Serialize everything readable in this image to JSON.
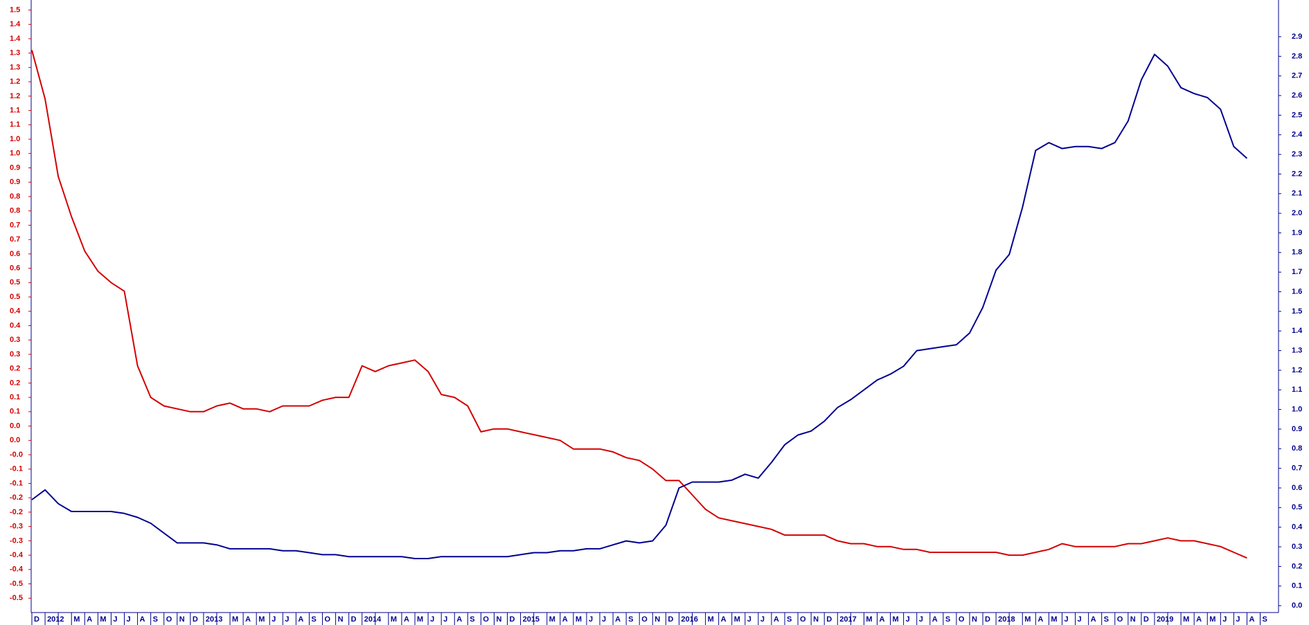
{
  "chart_data": {
    "type": "line",
    "categories": [
      "D",
      "2012",
      null,
      "M",
      "A",
      "M",
      "J",
      "J",
      "A",
      "S",
      "O",
      "N",
      "D",
      "2013",
      null,
      "M",
      "A",
      "M",
      "J",
      "J",
      "A",
      "S",
      "O",
      "N",
      "D",
      "2014",
      null,
      "M",
      "A",
      "M",
      "J",
      "J",
      "A",
      "S",
      "O",
      "N",
      "D",
      "2015",
      null,
      "M",
      "A",
      "M",
      "J",
      "J",
      "A",
      "S",
      "O",
      "N",
      "D",
      "2016",
      null,
      "M",
      "A",
      "M",
      "J",
      "J",
      "A",
      "S",
      "O",
      "N",
      "D",
      "2017",
      null,
      "M",
      "A",
      "M",
      "J",
      "J",
      "A",
      "S",
      "O",
      "N",
      "D",
      "2018",
      null,
      "M",
      "A",
      "M",
      "J",
      "J",
      "A",
      "S",
      "O",
      "N",
      "D",
      "2019",
      null,
      "M",
      "A",
      "M",
      "J",
      "J",
      "A",
      "S"
    ],
    "series": [
      {
        "color": "#d40000",
        "axis": "y",
        "values": [
          1.36,
          1.19,
          0.92,
          0.78,
          0.66,
          0.59,
          0.55,
          0.52,
          0.26,
          0.15,
          0.12,
          0.11,
          0.1,
          0.1,
          0.12,
          0.13,
          0.11,
          0.11,
          0.1,
          0.12,
          0.12,
          0.12,
          0.14,
          0.15,
          0.15,
          0.26,
          0.24,
          0.26,
          0.27,
          0.28,
          0.24,
          0.16,
          0.15,
          0.12,
          0.03,
          0.04,
          0.04,
          0.03,
          0.02,
          0.01,
          0.0,
          -0.03,
          -0.03,
          -0.03,
          -0.04,
          -0.06,
          -0.07,
          -0.1,
          -0.14,
          -0.14,
          -0.19,
          -0.24,
          -0.27,
          -0.28,
          -0.29,
          -0.3,
          -0.31,
          -0.33,
          -0.33,
          -0.33,
          -0.33,
          -0.35,
          -0.36,
          -0.36,
          -0.37,
          -0.37,
          -0.38,
          -0.38,
          -0.39,
          -0.39,
          -0.39,
          -0.39,
          -0.39,
          -0.39,
          -0.4,
          -0.4,
          -0.39,
          -0.38,
          -0.36,
          -0.37,
          -0.37,
          -0.37,
          -0.37,
          -0.36,
          -0.36,
          -0.35,
          -0.34,
          -0.35,
          -0.35,
          -0.36,
          -0.37,
          -0.39,
          -0.41,
          null
        ]
      },
      {
        "color": "#000090",
        "axis": "y2",
        "values": [
          0.54,
          0.59,
          0.52,
          0.48,
          0.48,
          0.48,
          0.48,
          0.47,
          0.45,
          0.42,
          0.37,
          0.32,
          0.32,
          0.32,
          0.31,
          0.29,
          0.29,
          0.29,
          0.29,
          0.28,
          0.28,
          0.27,
          0.26,
          0.26,
          0.25,
          0.25,
          0.25,
          0.25,
          0.25,
          0.24,
          0.24,
          0.25,
          0.25,
          0.25,
          0.25,
          0.25,
          0.25,
          0.26,
          0.27,
          0.27,
          0.28,
          0.28,
          0.29,
          0.29,
          0.31,
          0.33,
          0.32,
          0.33,
          0.41,
          0.6,
          0.63,
          0.63,
          0.63,
          0.64,
          0.67,
          0.65,
          0.73,
          0.82,
          0.87,
          0.89,
          0.94,
          1.01,
          1.05,
          1.1,
          1.15,
          1.18,
          1.22,
          1.3,
          1.31,
          1.32,
          1.33,
          1.39,
          1.52,
          1.71,
          1.79,
          2.03,
          2.32,
          2.36,
          2.33,
          2.34,
          2.34,
          2.33,
          2.36,
          2.47,
          2.68,
          2.81,
          2.75,
          2.64,
          2.61,
          2.59,
          2.53,
          2.34,
          2.28,
          null
        ]
      }
    ],
    "ylim": [
      -0.6,
      1.535
    ],
    "yticks": [
      1.5,
      {
        "value": 1.45,
        "label": "1.4"
      },
      1.4,
      {
        "value": 1.35,
        "label": "1.3"
      },
      1.3,
      {
        "value": 1.25,
        "label": "1.2"
      },
      1.2,
      {
        "value": 1.15,
        "label": "1.1"
      },
      1.1,
      {
        "value": 1.05,
        "label": "1.0"
      },
      {
        "value": 1.0,
        "label": "1.0"
      },
      {
        "value": 0.95,
        "label": "0.9"
      },
      0.9,
      {
        "value": 0.85,
        "label": "0.8"
      },
      0.8,
      {
        "value": 0.75,
        "label": "0.7"
      },
      0.7,
      {
        "value": 0.65,
        "label": "0.6"
      },
      0.6,
      {
        "value": 0.55,
        "label": "0.5"
      },
      0.5,
      {
        "value": 0.45,
        "label": "0.4"
      },
      0.4,
      {
        "value": 0.35,
        "label": "0.3"
      },
      0.3,
      {
        "value": 0.25,
        "label": "0.2"
      },
      0.2,
      {
        "value": 0.15,
        "label": "0.1"
      },
      0.1,
      {
        "value": 0.05,
        "label": "0.0"
      },
      {
        "value": 0,
        "label": "0.0"
      },
      {
        "value": -0.05,
        "label": "-0.0"
      },
      -0.1,
      {
        "value": -0.15,
        "label": "-0.1"
      },
      -0.2,
      {
        "value": -0.25,
        "label": "-0.2"
      },
      -0.3,
      {
        "value": -0.35,
        "label": "-0.3"
      },
      -0.4,
      {
        "value": -0.45,
        "label": "-0.4"
      },
      -0.5,
      {
        "value": -0.55,
        "label": "-0.5"
      }
    ],
    "y2lim": [
      -0.035,
      3.087
    ],
    "y2ticks": [
      2.9,
      2.8,
      2.7,
      2.6,
      2.5,
      2.4,
      2.3,
      2.2,
      2.1,
      {
        "value": 2.0,
        "label": "2.0"
      },
      1.9,
      1.8,
      1.7,
      1.6,
      1.5,
      1.4,
      1.3,
      1.2,
      1.1,
      {
        "value": 1.0,
        "label": "1.0"
      },
      0.9,
      0.8,
      0.7,
      0.6,
      0.5,
      0.4,
      0.3,
      0.2,
      0.1,
      {
        "value": 0,
        "label": "0.0"
      }
    ],
    "y_color": "#d40000",
    "y2_color": "#000090",
    "x_color": "#000090",
    "grid": false
  }
}
